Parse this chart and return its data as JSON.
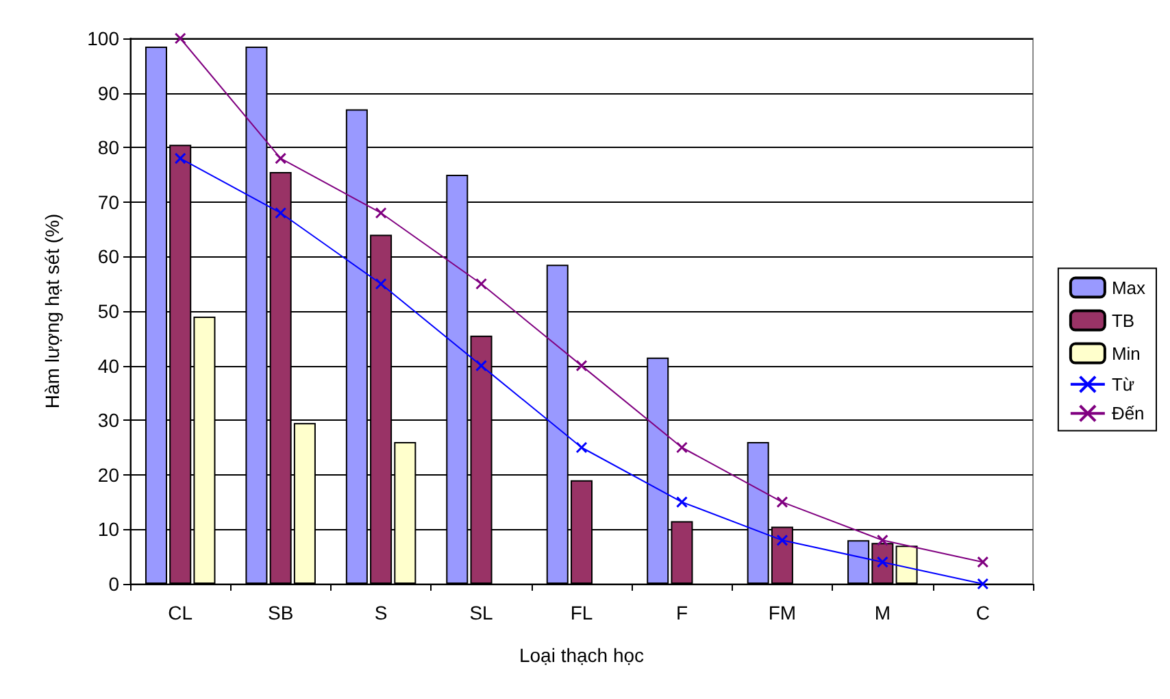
{
  "chart_data": {
    "type": "bar",
    "xlabel": "Loại thạch học",
    "ylabel": "Hàm lượng hạt sét (%)",
    "categories": [
      "CL",
      "SB",
      "S",
      "SL",
      "FL",
      "F",
      "FM",
      "M",
      "C"
    ],
    "series": [
      {
        "name": "Max",
        "color": "#9999ff",
        "values": [
          98.5,
          98.5,
          87,
          75,
          58.5,
          41.5,
          26,
          8,
          null
        ]
      },
      {
        "name": "TB",
        "color": "#993366",
        "values": [
          80.5,
          75.5,
          64,
          45.5,
          19,
          11.5,
          10.5,
          7.5,
          null
        ]
      },
      {
        "name": "Min",
        "color": "#ffffcc",
        "values": [
          49,
          29.5,
          26,
          null,
          null,
          null,
          null,
          7,
          null
        ]
      },
      {
        "name": "Từ",
        "type": "line",
        "color": "#0000ff",
        "marker": "cross",
        "values": [
          78,
          68,
          55,
          40,
          25,
          15,
          8,
          4,
          0
        ]
      },
      {
        "name": "Đến",
        "type": "line",
        "color": "#800080",
        "marker": "cross",
        "values": [
          100,
          78,
          68,
          55,
          40,
          25,
          15,
          8,
          4
        ]
      }
    ],
    "ylim": [
      0,
      100
    ],
    "yticks": [
      0,
      10,
      20,
      30,
      40,
      50,
      60,
      70,
      80,
      90,
      100
    ],
    "grid": "y",
    "legend": "right"
  }
}
